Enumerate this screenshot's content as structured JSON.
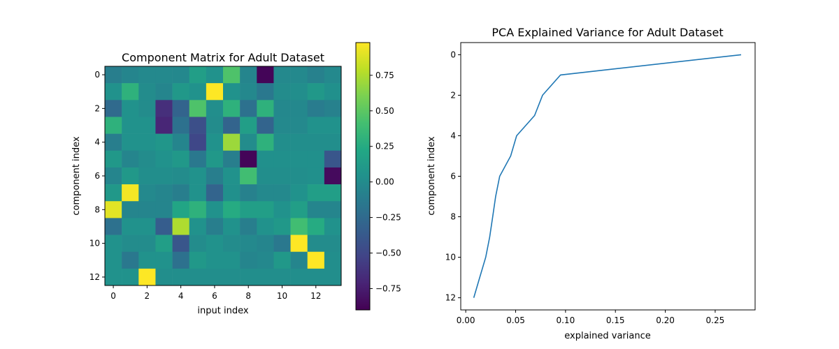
{
  "chart_data": [
    {
      "type": "heatmap",
      "title": "Component Matrix for Adult Dataset",
      "xlabel": "input index",
      "ylabel": "component index",
      "xticks": [
        0,
        2,
        4,
        6,
        8,
        10,
        12
      ],
      "yticks": [
        0,
        2,
        4,
        6,
        8,
        10,
        12
      ],
      "rows": 13,
      "cols": 14,
      "colormap": "viridis",
      "vmin": -0.9,
      "vmax": 0.98,
      "colorbar_ticks": [
        "−0.75",
        "−0.50",
        "−0.25",
        "0.00",
        "0.25",
        "0.50",
        "0.75"
      ],
      "colorbar_tick_values": [
        -0.75,
        -0.5,
        -0.25,
        0.0,
        0.25,
        0.5,
        0.75
      ],
      "values": [
        [
          -0.1,
          -0.05,
          -0.02,
          -0.02,
          -0.03,
          0.15,
          0.05,
          0.45,
          -0.05,
          -0.88,
          -0.02,
          -0.02,
          -0.08,
          -0.02
        ],
        [
          0.05,
          0.3,
          0.0,
          -0.05,
          0.1,
          0.05,
          0.98,
          0.05,
          -0.03,
          -0.15,
          0.0,
          0.02,
          0.1,
          0.03
        ],
        [
          -0.25,
          0.05,
          0.0,
          -0.65,
          -0.3,
          0.45,
          0.02,
          0.3,
          -0.2,
          0.3,
          -0.03,
          -0.03,
          -0.12,
          -0.08
        ],
        [
          0.3,
          0.05,
          0.05,
          -0.7,
          -0.2,
          -0.45,
          0.0,
          -0.3,
          0.15,
          -0.3,
          -0.02,
          -0.02,
          0.05,
          0.05
        ],
        [
          -0.1,
          0.05,
          0.05,
          0.08,
          -0.05,
          -0.5,
          0.05,
          0.7,
          0.0,
          0.3,
          0.02,
          0.02,
          0.02,
          0.02
        ],
        [
          0.1,
          -0.05,
          0.0,
          0.05,
          0.1,
          -0.15,
          0.1,
          -0.1,
          -0.88,
          0.03,
          0.03,
          0.03,
          0.03,
          -0.4
        ],
        [
          -0.05,
          0.1,
          0.02,
          0.02,
          0.0,
          0.05,
          -0.1,
          0.05,
          0.4,
          0.02,
          0.02,
          0.02,
          0.03,
          -0.85
        ],
        [
          0.1,
          0.95,
          -0.02,
          -0.05,
          -0.1,
          0.05,
          -0.3,
          0.03,
          -0.08,
          -0.02,
          -0.02,
          0.05,
          0.15,
          0.15
        ],
        [
          0.9,
          -0.05,
          -0.05,
          -0.05,
          0.2,
          0.3,
          0.05,
          0.25,
          0.15,
          0.15,
          0.05,
          0.15,
          -0.05,
          -0.05
        ],
        [
          -0.2,
          0.05,
          0.05,
          -0.35,
          0.75,
          0.05,
          -0.1,
          0.05,
          -0.1,
          0.05,
          0.1,
          0.4,
          0.25,
          0.05
        ],
        [
          0.05,
          0.0,
          0.0,
          0.15,
          -0.4,
          0.0,
          0.05,
          0.0,
          -0.02,
          -0.05,
          -0.15,
          0.98,
          0.0,
          0.0
        ],
        [
          0.05,
          -0.15,
          0.05,
          0.05,
          -0.2,
          0.1,
          0.05,
          0.05,
          -0.05,
          -0.03,
          0.1,
          -0.05,
          0.98,
          0.02
        ],
        [
          0.05,
          0.05,
          0.98,
          0.02,
          0.02,
          0.02,
          0.02,
          0.02,
          0.02,
          0.02,
          0.02,
          0.02,
          0.02,
          0.02
        ]
      ]
    },
    {
      "type": "line",
      "title": "PCA Explained Variance for Adult Dataset",
      "xlabel": "explained variance",
      "ylabel": "component index",
      "xlim": [
        -0.005,
        0.29
      ],
      "ylim": [
        12.6,
        -0.6
      ],
      "y_inverted": true,
      "xticks": [
        "0.00",
        "0.05",
        "0.10",
        "0.15",
        "0.20",
        "0.25"
      ],
      "xtick_values": [
        0.0,
        0.05,
        0.1,
        0.15,
        0.2,
        0.25
      ],
      "yticks": [
        "0",
        "2",
        "4",
        "6",
        "8",
        "10",
        "12"
      ],
      "ytick_values": [
        0,
        2,
        4,
        6,
        8,
        10,
        12
      ],
      "line_color": "#1f77b4",
      "points": [
        {
          "x": 0.276,
          "y": 0
        },
        {
          "x": 0.095,
          "y": 1
        },
        {
          "x": 0.077,
          "y": 2
        },
        {
          "x": 0.069,
          "y": 3
        },
        {
          "x": 0.051,
          "y": 4
        },
        {
          "x": 0.045,
          "y": 5
        },
        {
          "x": 0.034,
          "y": 6
        },
        {
          "x": 0.03,
          "y": 7
        },
        {
          "x": 0.027,
          "y": 8
        },
        {
          "x": 0.024,
          "y": 9
        },
        {
          "x": 0.02,
          "y": 10
        },
        {
          "x": 0.014,
          "y": 11
        },
        {
          "x": 0.008,
          "y": 12
        }
      ]
    }
  ]
}
